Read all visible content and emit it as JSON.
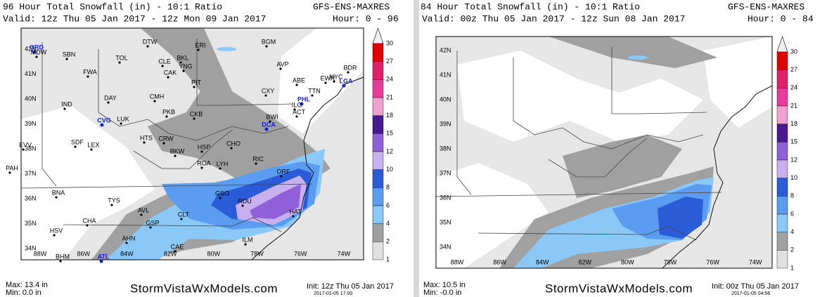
{
  "panels": [
    {
      "title": "96 Hour Total Snowfall (in) - 10:1 Ratio",
      "model": "GFS-ENS-MAXRES",
      "valid": "Valid: 12z Thu 05 Jan 2017 - 12z Mon 09 Jan 2017",
      "hour": "Hour: 0 - 96",
      "max": "Max: 13.4 in",
      "min": "Min: 0.0 in",
      "site": "StormVistaWxModels.com",
      "init": "Init: 12z Thu 05 Jan 2017",
      "stamp": "2017-01-05 17:00",
      "lat_labels": [
        "42N",
        "41N",
        "40N",
        "39N",
        "38N",
        "37N",
        "36N",
        "35N",
        "34N"
      ],
      "lon_labels": [
        "88W",
        "86W",
        "84W",
        "82W",
        "80W",
        "78W",
        "76W",
        "74W"
      ],
      "cities": [
        "DTW",
        "ERI",
        "BGM",
        "ORD",
        "MDW",
        "SBN",
        "TOL",
        "BKL",
        "CLE",
        "YNG",
        "AVP",
        "FWA",
        "CAK",
        "ABE",
        "BDR",
        "EWR",
        "NYC",
        "LGA",
        "PIT",
        "CXY",
        "TTN",
        "PHL",
        "IND",
        "DAY",
        "CMH",
        "ILG",
        "ACT",
        "BWI",
        "CVG",
        "LUK",
        "PKB",
        "CKB",
        "DCA",
        "EVV",
        "SDF",
        "LEX",
        "HTS",
        "CRW",
        "BKW",
        "HSP",
        "CHO",
        "RIC",
        "PAH",
        "ROA",
        "LYH",
        "ORF",
        "BNA",
        "GSO",
        "RDU",
        "TYS",
        "AVL",
        "CLT",
        "HAT",
        "CHA",
        "GSP",
        "HSV",
        "AHN",
        "CAE",
        "ILM",
        "BHM",
        "ATL"
      ],
      "colorbar": {
        "levels": [
          30,
          27,
          24,
          21,
          18,
          15,
          12,
          10,
          8,
          6,
          4,
          2,
          1
        ],
        "colors": [
          "#e00000",
          "#e0206a",
          "#e83c9c",
          "#f0a0d0",
          "#4a1890",
          "#9060d8",
          "#c8b0f0",
          "#2a5cd8",
          "#5a9cf0",
          "#8ac8f8",
          "#a0a0a0",
          "#e0e0e0"
        ]
      }
    },
    {
      "title": "84 Hour Total Snowfall (in) - 10:1 Ratio",
      "model": "GFS-ENS-MAXRES",
      "valid": "Valid: 00z Thu 05 Jan 2017 - 12z Sun 08 Jan 2017",
      "hour": "Hour: 0 - 84",
      "max": "Max: 10.5 in",
      "min": "Min: -0.0 in",
      "site": "StormVistaWxModels.com",
      "init": "Init: 00z Thu 05 Jan 2017",
      "stamp": "2017-01-05 04:56",
      "lat_labels": [
        "42N",
        "41N",
        "40N",
        "39N",
        "38N",
        "37N",
        "36N",
        "35N",
        "34N"
      ],
      "lon_labels": [
        "88W",
        "86W",
        "84W",
        "82W",
        "80W",
        "78W",
        "76W",
        "74W"
      ],
      "colorbar": {
        "levels": [
          30,
          27,
          24,
          21,
          18,
          15,
          12,
          10,
          8,
          6,
          4,
          2,
          1
        ],
        "colors": [
          "#e00000",
          "#e0206a",
          "#e83c9c",
          "#f0a0d0",
          "#4a1890",
          "#9060d8",
          "#c8b0f0",
          "#2a5cd8",
          "#5a9cf0",
          "#8ac8f8",
          "#a0a0a0",
          "#e0e0e0"
        ]
      }
    }
  ]
}
